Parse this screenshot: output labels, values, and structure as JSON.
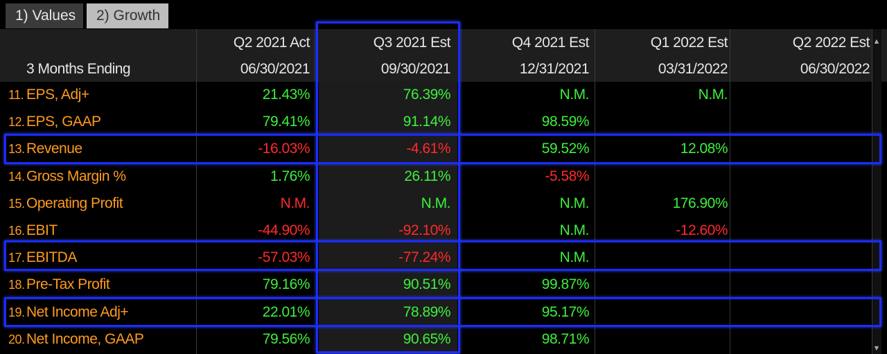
{
  "tabs": [
    "1) Values",
    "2) Growth"
  ],
  "header": {
    "columns": [
      "Q2 2021 Act",
      "Q3 2021 Est",
      "Q4 2021 Est",
      "Q1 2022 Est",
      "Q2 2022 Est"
    ],
    "row_label": "3 Months Ending",
    "dates": [
      "06/30/2021",
      "09/30/2021",
      "12/31/2021",
      "03/31/2022",
      "06/30/2022"
    ]
  },
  "rows": [
    {
      "number": "11.",
      "name": "EPS, Adj+",
      "values": [
        "21.43%",
        "76.39%",
        "N.M.",
        "N.M.",
        null
      ],
      "colors": [
        "#3cf03c",
        "#3cf03c",
        "#3cf03c",
        "#3cf03c",
        null
      ]
    },
    {
      "number": "12.",
      "name": "EPS, GAAP",
      "values": [
        "79.41%",
        "91.14%",
        "98.59%",
        null,
        null
      ],
      "colors": [
        "#3cf03c",
        "#3cf03c",
        "#3cf03c",
        null,
        null
      ]
    },
    {
      "number": "13.",
      "name": "Revenue",
      "values": [
        "-16.03%",
        "-4.61%",
        "59.52%",
        "12.08%",
        null
      ],
      "colors": [
        "#ff2a2a",
        "#ff2a2a",
        "#3cf03c",
        "#3cf03c",
        null
      ]
    },
    {
      "number": "14.",
      "name": "Gross Margin %",
      "values": [
        "1.76%",
        "26.11%",
        "-5.58%",
        null,
        null
      ],
      "colors": [
        "#3cf03c",
        "#3cf03c",
        "#ff2a2a",
        null,
        null
      ]
    },
    {
      "number": "15.",
      "name": "Operating Profit",
      "values": [
        "N.M.",
        "N.M.",
        "N.M.",
        "176.90%",
        null
      ],
      "colors": [
        "#ff2a2a",
        "#3cf03c",
        "#3cf03c",
        "#3cf03c",
        null
      ]
    },
    {
      "number": "16.",
      "name": "EBIT",
      "values": [
        "-44.90%",
        "-92.10%",
        "N.M.",
        "-12.60%",
        null
      ],
      "colors": [
        "#ff2a2a",
        "#ff2a2a",
        "#3cf03c",
        "#ff2a2a",
        null
      ]
    },
    {
      "number": "17.",
      "name": "EBITDA",
      "values": [
        "-57.03%",
        "-77.24%",
        "N.M.",
        null,
        null
      ],
      "colors": [
        "#ff2a2a",
        "#ff2a2a",
        "#3cf03c",
        null,
        null
      ]
    },
    {
      "number": "18.",
      "name": "Pre-Tax Profit",
      "values": [
        "79.16%",
        "90.51%",
        "99.87%",
        null,
        null
      ],
      "colors": [
        "#3cf03c",
        "#3cf03c",
        "#3cf03c",
        null,
        null
      ]
    },
    {
      "number": "19.",
      "name": "Net Income Adj+",
      "values": [
        "22.01%",
        "78.89%",
        "95.17%",
        null,
        null
      ],
      "colors": [
        "#3cf03c",
        "#3cf03c",
        "#3cf03c",
        null,
        null
      ]
    },
    {
      "number": "20.",
      "name": "Net Income, GAAP",
      "values": [
        "79.56%",
        "90.65%",
        "98.71%",
        null,
        null
      ],
      "colors": [
        "#3cf03c",
        "#3cf03c",
        "#3cf03c",
        null,
        null
      ]
    }
  ]
}
